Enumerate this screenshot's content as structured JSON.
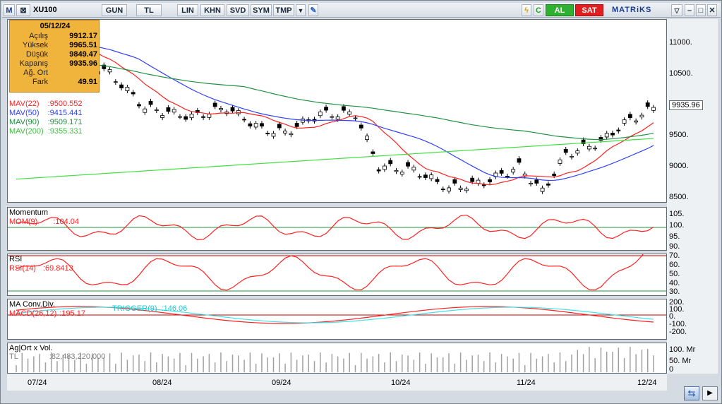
{
  "toolbar": {
    "logo": "M",
    "symbol": "XU100",
    "buttons": [
      "GUN",
      "TL",
      "LIN",
      "KHN",
      "SVD",
      "SYM",
      "TMP"
    ],
    "al_label": "AL",
    "sat_label": "SAT",
    "brand": "MATRiKS",
    "c_label": "C"
  },
  "info": {
    "date": "05/12/24",
    "rows": [
      {
        "k": "Açılış",
        "v": "9912.17"
      },
      {
        "k": "Yüksek",
        "v": "9965.51"
      },
      {
        "k": "Düşük",
        "v": "9849.47"
      },
      {
        "k": "Kapanış",
        "v": "9935.96"
      },
      {
        "k": "Ağ. Ort",
        "v": ""
      },
      {
        "k": "Fark",
        "v": "49.91"
      }
    ]
  },
  "price_pane": {
    "mav": [
      {
        "label": "MAV(22)",
        "value": ":9500.552",
        "color": "#ff2020"
      },
      {
        "label": "MAV(50)",
        "value": ":9415.441",
        "color": "#3040ff"
      },
      {
        "label": "MAV(90)",
        "value": ":9509.171",
        "color": "#209040"
      },
      {
        "label": "MAV(200)",
        "value": ":9355.331",
        "color": "#40e040"
      }
    ],
    "last_price": "9935.96",
    "y_ticks": [
      "11000.",
      "10500.",
      "9500.",
      "9000.",
      "8500."
    ]
  },
  "momentum_pane": {
    "title": "Momentum",
    "label": "MOM(9)",
    "value": ":104.04",
    "y_ticks": [
      "105.",
      "100.",
      "95.",
      "90."
    ]
  },
  "rsi_pane": {
    "title": "RSI",
    "label": "RSI(14)",
    "value": ":69.8413",
    "y_ticks": [
      "70.",
      "60.",
      "50.",
      "40.",
      "30."
    ]
  },
  "macd_pane": {
    "title": "MA Conv.Div.",
    "label": "MACD(26,12)",
    "value": ":195.17",
    "trigger_label": "TRIGGER(9)",
    "trigger_value": ":146.06",
    "y_ticks": [
      "200.",
      "100.",
      "0.",
      "-100.",
      "-200."
    ]
  },
  "volume_pane": {
    "title": "Ag|Ort x Vol.",
    "label": "TL",
    "value": ":82,483,220,000",
    "y_ticks": [
      "100. Mr",
      "50. Mr",
      "0"
    ]
  },
  "x_ticks": [
    "07/24",
    "08/24",
    "09/24",
    "10/24",
    "11/24",
    "12/24"
  ],
  "colors": {
    "up_candle": "#ffffff",
    "down_candle": "#000000",
    "momentum": "#ff2020",
    "rsi": "#ff2020",
    "macd": "#ff2020",
    "trigger": "#40e0e8",
    "ref_line": "#209040"
  }
}
